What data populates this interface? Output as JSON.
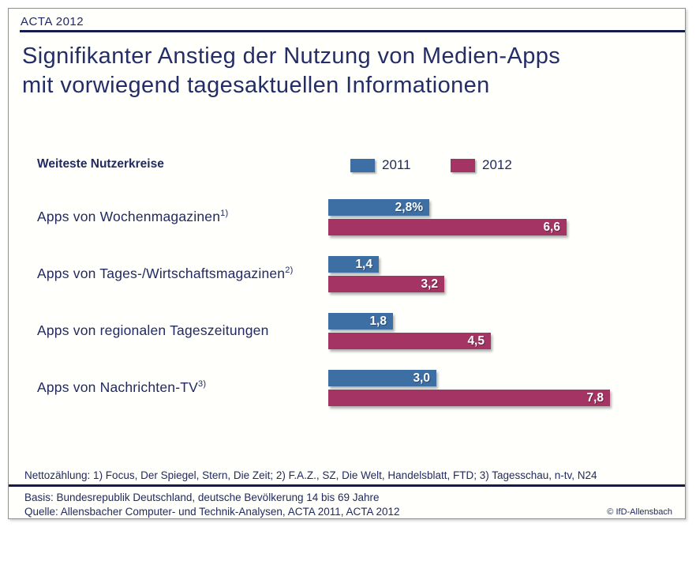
{
  "slide": {
    "eyebrow": "ACTA 2012",
    "title_lines": [
      "Signifikanter Anstieg der Nutzung von Medien-Apps",
      "mit vorwiegend tagesaktuellen Informationen"
    ],
    "copyright": "© IfD-Allensbach"
  },
  "legend": {
    "label": "Weiteste Nutzerkreise",
    "series": [
      {
        "name": "2011",
        "color": "#3d6fa5"
      },
      {
        "name": "2012",
        "color": "#a33463"
      }
    ]
  },
  "chart_data": {
    "type": "bar",
    "orientation": "horizontal",
    "unit": "percent",
    "title": "Signifikanter Anstieg der Nutzung von Medien-Apps mit vorwiegend tagesaktuellen Informationen",
    "categories": [
      "Apps von Wochenmagazinen",
      "Apps von Tages-/Wirtschaftsmagazinen",
      "Apps von regionalen Tageszeitungen",
      "Apps von Nachrichten-TV"
    ],
    "category_superscripts": [
      "1)",
      "2)",
      "",
      "3)"
    ],
    "series": [
      {
        "name": "2011",
        "color": "#3d6fa5",
        "values": [
          2.8,
          1.4,
          1.8,
          3.0
        ],
        "labels": [
          "2,8%",
          "1,4",
          "1,8",
          "3,0"
        ]
      },
      {
        "name": "2012",
        "color": "#a33463",
        "values": [
          6.6,
          3.2,
          4.5,
          7.8
        ],
        "labels": [
          "6,6",
          "3,2",
          "4,5",
          "7,8"
        ]
      }
    ],
    "xlim": [
      0,
      9.4
    ],
    "axes_visible": false,
    "grid": false,
    "legend_position": "top",
    "value_labels": "inside-end"
  },
  "footer": {
    "footnote": "Nettozählung: 1) Focus, Der Spiegel, Stern, Die Zeit; 2) F.A.Z., SZ, Die Welt, Handelsblatt, FTD; 3) Tagesschau, n-tv, N24",
    "basis": "Basis: Bundesrepublik Deutschland, deutsche Bevölkerung 14 bis 69 Jahre",
    "quelle": "Quelle: Allensbacher Computer- und Technik-Analysen, ACTA 2011, ACTA 2012"
  },
  "colors": {
    "text_navy": "#222a60",
    "rule_navy": "#141c4b",
    "slide_background": "#fffffc",
    "bar_2011": "#3d6fa5",
    "bar_2012": "#a33463"
  }
}
